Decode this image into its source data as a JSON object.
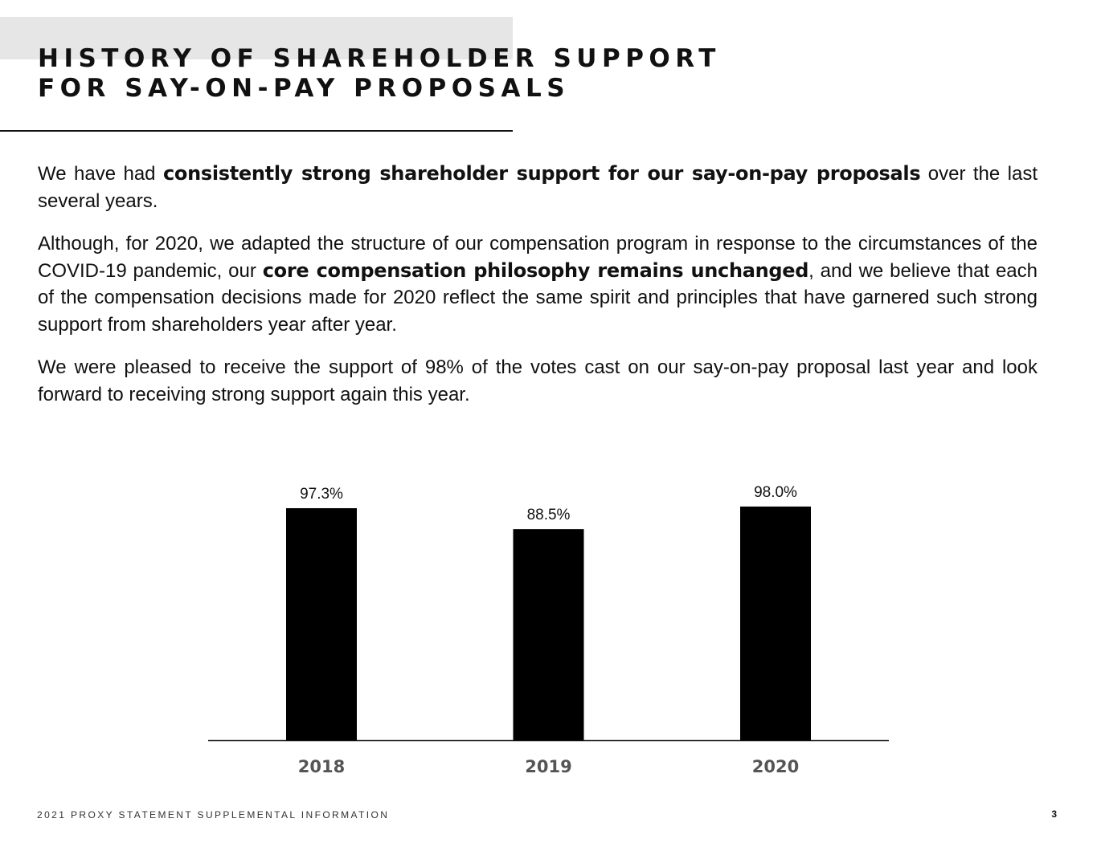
{
  "header": {
    "title_line1": "HISTORY OF SHAREHOLDER SUPPORT",
    "title_line2": "FOR SAY-ON-PAY PROPOSALS"
  },
  "body": {
    "p1_pre": "We have had ",
    "p1_bold": "consistently strong shareholder support for our say-on-pay proposals",
    "p1_post": " over the last several years.",
    "p2_pre": "Although, for 2020, we adapted the structure of our compensation program in response to the circumstances of the COVID-19 pandemic, our ",
    "p2_bold": "core compensation philosophy remains unchanged",
    "p2_post": ", and we believe that each of the compensation decisions made for 2020 reflect the same spirit and principles that have garnered such strong support from shareholders year after year.",
    "p3": "We were pleased to receive the support of 98% of the votes cast on our say-on-pay proposal last year and look forward to receiving strong support again this year."
  },
  "chart_data": {
    "type": "bar",
    "categories": [
      "2018",
      "2019",
      "2020"
    ],
    "values": [
      97.3,
      88.5,
      98.0
    ],
    "value_labels": [
      "97.3%",
      "88.5%",
      "98.0%"
    ],
    "bar_color": "#000000",
    "category_label_color": "#555555",
    "grid": false,
    "legend": "none"
  },
  "footer": {
    "left": "2021 PROXY STATEMENT SUPPLEMENTAL INFORMATION",
    "page": "3"
  }
}
